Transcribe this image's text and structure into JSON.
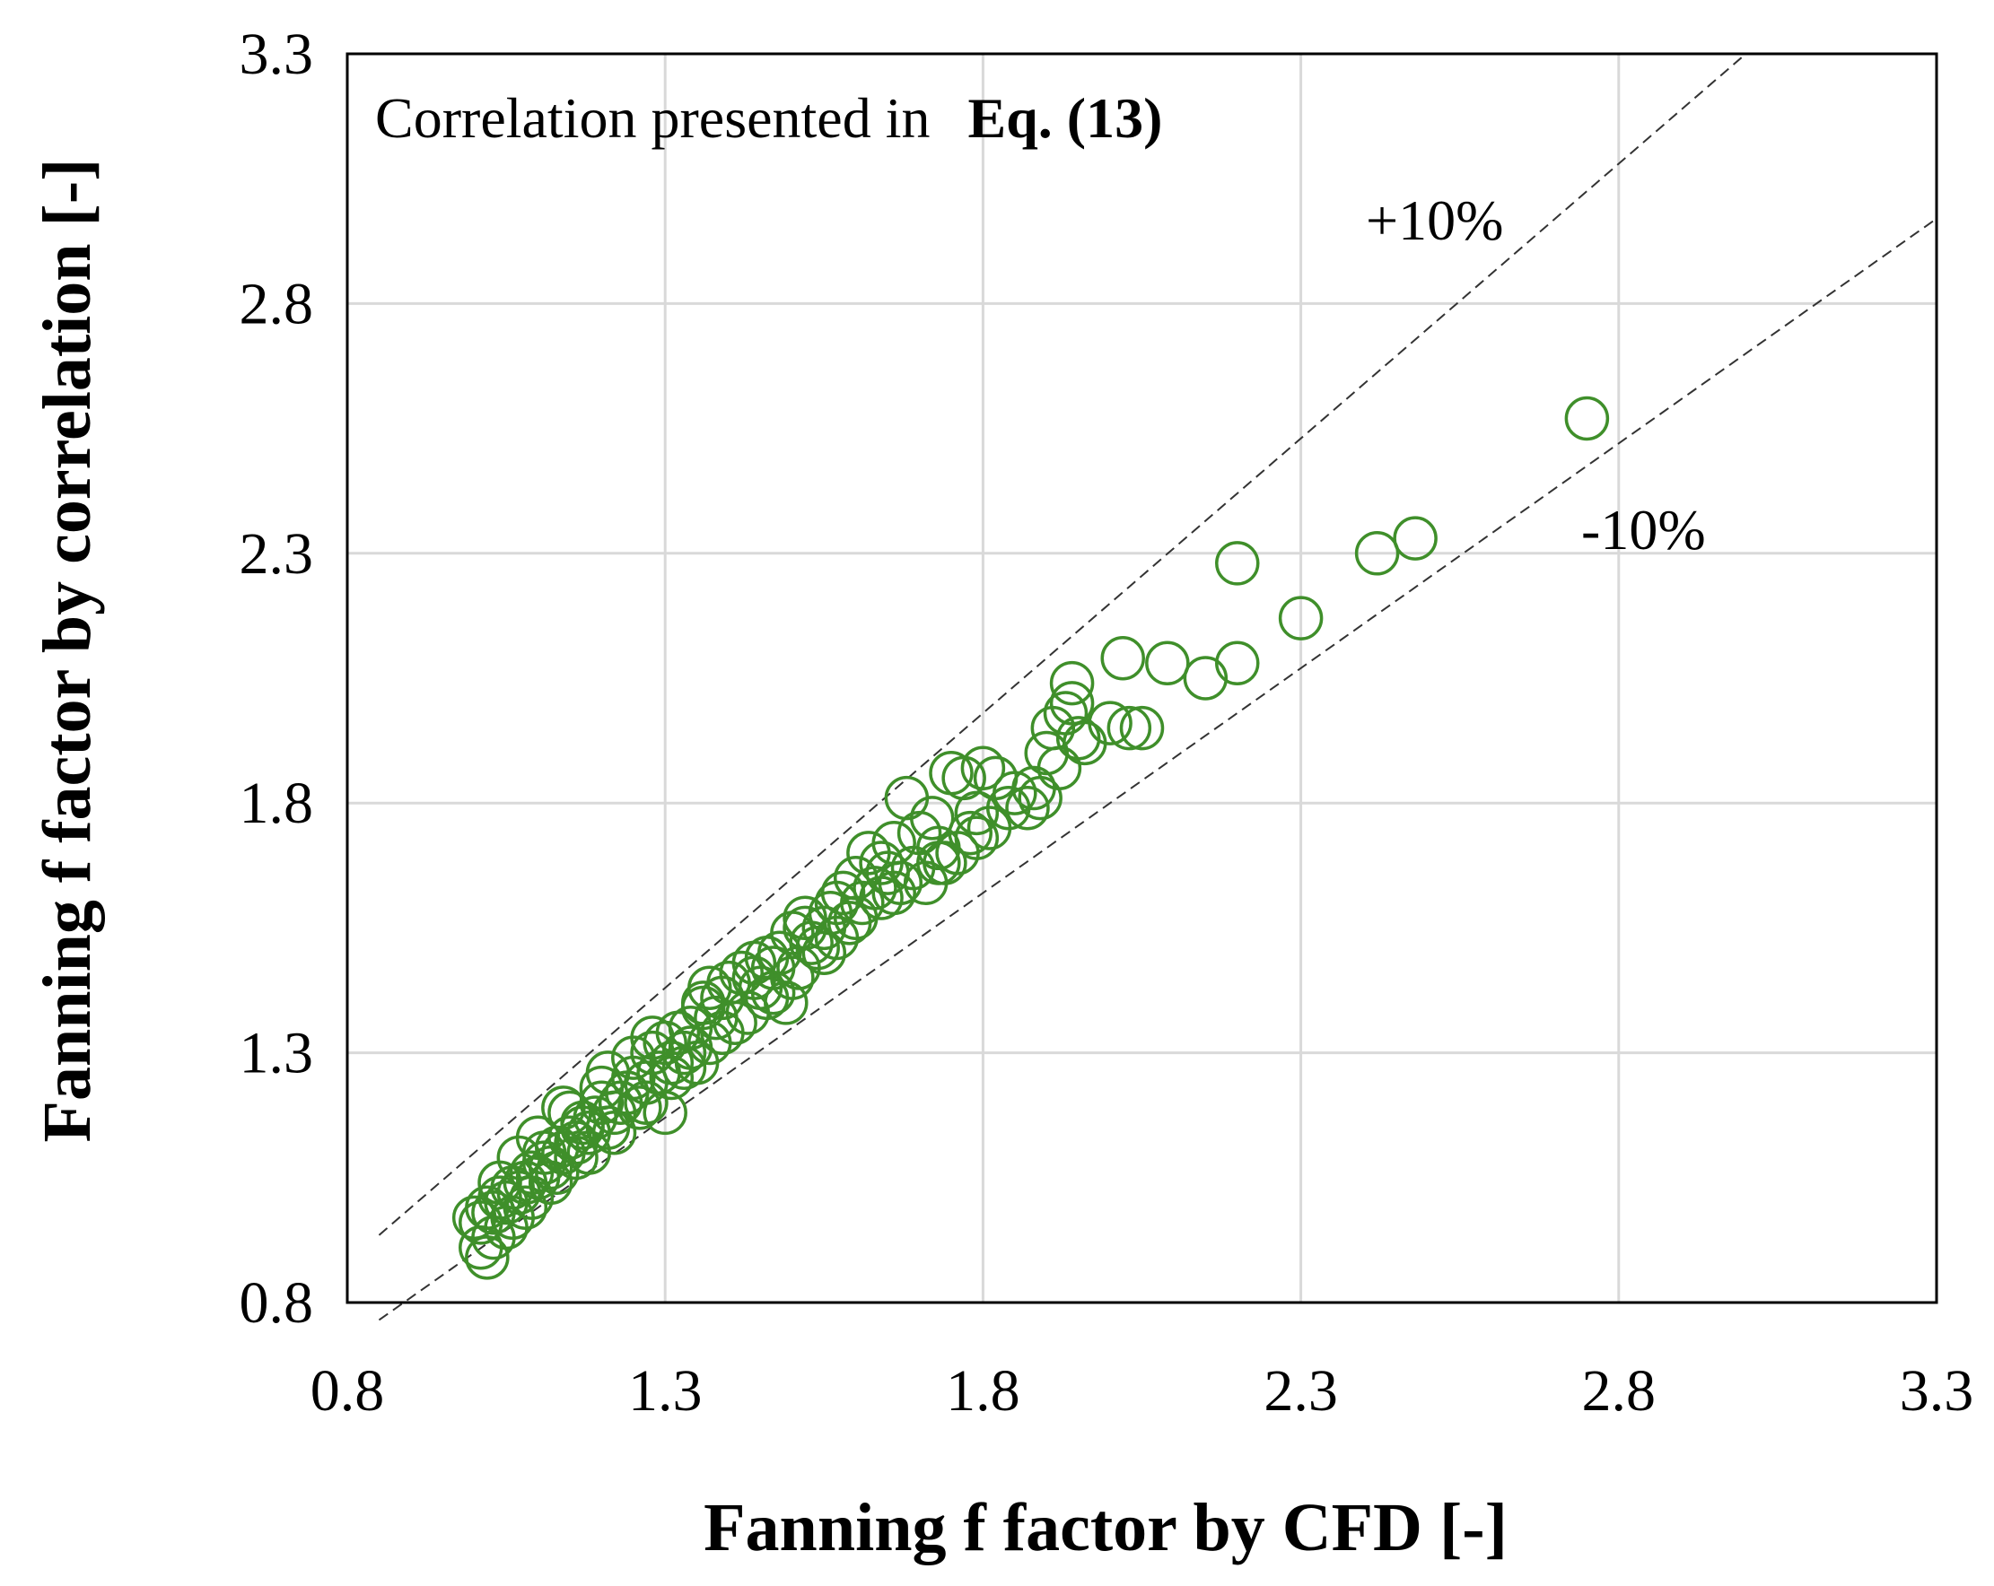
{
  "chart_data": {
    "type": "scatter",
    "title": "",
    "annotation": {
      "prefix": "Correlation presented in",
      "bold": "Eq. (13)"
    },
    "xlabel": "Fanning f factor by CFD [-]",
    "ylabel": "Fanning f factor by correlation [-]",
    "xlim": [
      0.8,
      3.3
    ],
    "ylim": [
      0.8,
      3.3
    ],
    "xticks": [
      "0.8",
      "1.3",
      "1.8",
      "2.3",
      "2.8",
      "3.3"
    ],
    "yticks": [
      "0.8",
      "1.3",
      "1.8",
      "2.3",
      "2.8",
      "3.3"
    ],
    "grid": true,
    "color": "#3f8f2a",
    "bands": [
      {
        "label": "+10%",
        "slope": 1.1
      },
      {
        "label": "-10%",
        "slope": 0.9
      }
    ],
    "series": [
      {
        "name": "Eq. (13)",
        "x": [
          2.75,
          2.48,
          2.42,
          2.2,
          2.3,
          2.02,
          2.09,
          2.15,
          2.2,
          2.03,
          2.05,
          1.94,
          1.94,
          1.93,
          1.91,
          1.95,
          1.92,
          1.9,
          1.88,
          1.85,
          1.82,
          1.84,
          1.8,
          1.77,
          1.79,
          1.75,
          1.78,
          1.72,
          1.7,
          1.73,
          1.68,
          1.66,
          1.62,
          1.65,
          1.63,
          1.67,
          1.6,
          1.58,
          1.61,
          1.56,
          1.55,
          1.52,
          1.5,
          1.48,
          1.53,
          1.47,
          1.46,
          1.44,
          1.42,
          1.45,
          1.49,
          1.4,
          1.39,
          1.37,
          1.36,
          1.38,
          1.41,
          1.34,
          1.33,
          1.3,
          1.31,
          1.28,
          1.29,
          1.32,
          1.35,
          1.27,
          1.25,
          1.24,
          1.23,
          1.26,
          1.22,
          1.2,
          1.21,
          1.19,
          1.18,
          1.17,
          1.16,
          1.15,
          1.14,
          1.13,
          1.12,
          1.11,
          1.1,
          1.09,
          1.08,
          1.07,
          1.06,
          1.05,
          1.04,
          1.03,
          1.02,
          1.01,
          1.0,
          1.1,
          1.15,
          1.2,
          1.25,
          1.3,
          1.18,
          1.12,
          1.08,
          1.05,
          1.03,
          1.01,
          1.02,
          1.06,
          1.09,
          1.13,
          1.16,
          1.22,
          1.27,
          1.33,
          1.37,
          1.43,
          1.47,
          1.51,
          1.54,
          1.57,
          1.59,
          1.64,
          1.69,
          1.71,
          1.74,
          1.76,
          1.81,
          1.87,
          1.89,
          1.96,
          2.0,
          1.64,
          1.57,
          1.52,
          1.44,
          1.36,
          1.28,
          1.21,
          1.14,
          1.07,
          1.04,
          1.11,
          1.17,
          1.24,
          1.31,
          1.34,
          1.39,
          1.46,
          1.5,
          1.55,
          1.6,
          1.66,
          1.73,
          1.79
        ],
        "y": [
          2.57,
          2.33,
          2.3,
          2.28,
          2.17,
          2.09,
          2.08,
          2.05,
          2.08,
          1.95,
          1.95,
          2.04,
          2.0,
          1.98,
          1.95,
          1.93,
          1.87,
          1.9,
          1.83,
          1.82,
          1.85,
          1.79,
          1.87,
          1.85,
          1.78,
          1.86,
          1.74,
          1.77,
          1.74,
          1.71,
          1.81,
          1.72,
          1.7,
          1.66,
          1.63,
          1.64,
          1.65,
          1.62,
          1.6,
          1.58,
          1.55,
          1.57,
          1.54,
          1.5,
          1.52,
          1.47,
          1.49,
          1.45,
          1.46,
          1.43,
          1.4,
          1.44,
          1.41,
          1.43,
          1.39,
          1.37,
          1.36,
          1.35,
          1.3,
          1.32,
          1.28,
          1.3,
          1.26,
          1.34,
          1.28,
          1.24,
          1.25,
          1.22,
          1.2,
          1.19,
          1.18,
          1.2,
          1.15,
          1.17,
          1.14,
          1.16,
          1.12,
          1.13,
          1.1,
          1.11,
          1.07,
          1.08,
          1.05,
          1.06,
          1.04,
          1.02,
          1.03,
          1.0,
          1.01,
          0.98,
          0.99,
          0.96,
          0.97,
          1.13,
          1.18,
          1.23,
          1.29,
          1.18,
          1.1,
          1.04,
          0.99,
          0.95,
          0.93,
          0.91,
          0.89,
          0.97,
          1.01,
          1.06,
          1.09,
          1.14,
          1.2,
          1.27,
          1.32,
          1.38,
          1.42,
          1.47,
          1.51,
          1.53,
          1.56,
          1.61,
          1.67,
          1.64,
          1.68,
          1.7,
          1.75,
          1.79,
          1.81,
          1.92,
          1.96,
          1.68,
          1.6,
          1.55,
          1.48,
          1.4,
          1.33,
          1.26,
          1.19,
          1.09,
          1.04,
          1.1,
          1.15,
          1.22,
          1.25,
          1.31,
          1.34,
          1.41,
          1.45,
          1.5,
          1.57,
          1.62,
          1.68,
          1.73
        ]
      }
    ]
  }
}
